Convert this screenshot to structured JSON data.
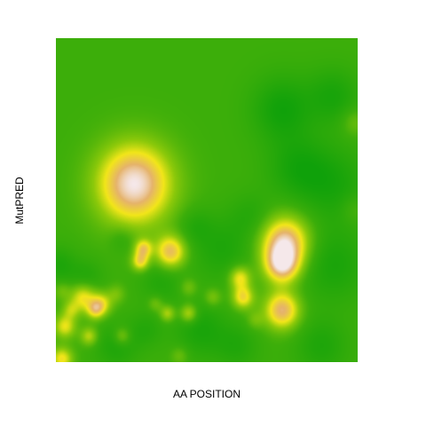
{
  "chart_data": {
    "type": "heatmap",
    "xlabel": "AA POSITION",
    "ylabel": "MutPRED",
    "xlim": [
      0,
      1
    ],
    "ylim": [
      0,
      1
    ],
    "grid": false,
    "legend": "none",
    "colors": {
      "background": "#3cae0a",
      "low": "#0fa10a",
      "mid": "#8cc90a",
      "yellow": "#f2e619",
      "orange": "#e5b36b",
      "peak": "#f5e8ea"
    },
    "hotspots": [
      {
        "x": 0.26,
        "y": 0.55,
        "intensity": 1.0,
        "spread": 0.085
      },
      {
        "x": 0.76,
        "y": 0.37,
        "intensity": 0.9,
        "spread": 0.055
      },
      {
        "x": 0.75,
        "y": 0.3,
        "intensity": 0.8,
        "spread": 0.04
      },
      {
        "x": 0.75,
        "y": 0.16,
        "intensity": 0.8,
        "spread": 0.04
      },
      {
        "x": 0.38,
        "y": 0.34,
        "intensity": 0.75,
        "spread": 0.035
      },
      {
        "x": 0.29,
        "y": 0.35,
        "intensity": 0.6,
        "spread": 0.02
      },
      {
        "x": 0.28,
        "y": 0.31,
        "intensity": 0.6,
        "spread": 0.02
      },
      {
        "x": 0.61,
        "y": 0.26,
        "intensity": 0.55,
        "spread": 0.025
      },
      {
        "x": 0.62,
        "y": 0.2,
        "intensity": 0.6,
        "spread": 0.025
      },
      {
        "x": 0.09,
        "y": 0.2,
        "intensity": 0.55,
        "spread": 0.03
      },
      {
        "x": 0.15,
        "y": 0.18,
        "intensity": 0.5,
        "spread": 0.025
      },
      {
        "x": 0.13,
        "y": 0.16,
        "intensity": 0.45,
        "spread": 0.02
      },
      {
        "x": 0.03,
        "y": 0.11,
        "intensity": 0.5,
        "spread": 0.025
      },
      {
        "x": 0.02,
        "y": 0.01,
        "intensity": 0.55,
        "spread": 0.025
      },
      {
        "x": 0.11,
        "y": 0.08,
        "intensity": 0.4,
        "spread": 0.02
      },
      {
        "x": 0.44,
        "y": 0.15,
        "intensity": 0.45,
        "spread": 0.02
      },
      {
        "x": 0.37,
        "y": 0.15,
        "intensity": 0.4,
        "spread": 0.018
      },
      {
        "x": 0.22,
        "y": 0.08,
        "intensity": 0.3,
        "spread": 0.02
      },
      {
        "x": 0.05,
        "y": 0.16,
        "intensity": 0.3,
        "spread": 0.02
      },
      {
        "x": 0.52,
        "y": 0.2,
        "intensity": 0.25,
        "spread": 0.02
      },
      {
        "x": 0.44,
        "y": 0.23,
        "intensity": 0.22,
        "spread": 0.02
      },
      {
        "x": 0.2,
        "y": 0.21,
        "intensity": 0.2,
        "spread": 0.02
      },
      {
        "x": 0.33,
        "y": 0.18,
        "intensity": 0.22,
        "spread": 0.018
      },
      {
        "x": 0.02,
        "y": 0.22,
        "intensity": 0.18,
        "spread": 0.02
      },
      {
        "x": 0.99,
        "y": 0.74,
        "intensity": 0.18,
        "spread": 0.03
      },
      {
        "x": 0.99,
        "y": 0.47,
        "intensity": 0.12,
        "spread": 0.03
      },
      {
        "x": 0.66,
        "y": 0.13,
        "intensity": 0.18,
        "spread": 0.02
      },
      {
        "x": 0.41,
        "y": 0.02,
        "intensity": 0.18,
        "spread": 0.02
      }
    ],
    "lows": [
      {
        "x": 0.75,
        "y": 0.78,
        "depth": 1.0,
        "spread": 0.07
      },
      {
        "x": 0.92,
        "y": 0.82,
        "depth": 0.8,
        "spread": 0.06
      },
      {
        "x": 0.8,
        "y": 0.6,
        "depth": 0.8,
        "spread": 0.07
      },
      {
        "x": 0.92,
        "y": 0.55,
        "depth": 0.8,
        "spread": 0.08
      },
      {
        "x": 0.92,
        "y": 0.3,
        "depth": 0.8,
        "spread": 0.08
      },
      {
        "x": 0.55,
        "y": 0.35,
        "depth": 0.7,
        "spread": 0.07
      },
      {
        "x": 0.48,
        "y": 0.1,
        "depth": 0.8,
        "spread": 0.06
      },
      {
        "x": 0.35,
        "y": 0.25,
        "depth": 0.6,
        "spread": 0.05
      },
      {
        "x": 0.1,
        "y": 0.26,
        "depth": 0.6,
        "spread": 0.04
      },
      {
        "x": 0.2,
        "y": 0.05,
        "depth": 0.7,
        "spread": 0.05
      },
      {
        "x": 0.88,
        "y": 0.05,
        "depth": 0.7,
        "spread": 0.06
      },
      {
        "x": 0.6,
        "y": 0.05,
        "depth": 0.6,
        "spread": 0.05
      },
      {
        "x": 0.65,
        "y": 0.45,
        "depth": 0.5,
        "spread": 0.05
      },
      {
        "x": 0.01,
        "y": 0.3,
        "depth": 0.7,
        "spread": 0.04
      },
      {
        "x": 0.22,
        "y": 0.38,
        "depth": 0.5,
        "spread": 0.03
      },
      {
        "x": 0.46,
        "y": 0.42,
        "depth": 0.5,
        "spread": 0.04
      },
      {
        "x": 0.3,
        "y": 0.1,
        "depth": 0.5,
        "spread": 0.04
      }
    ]
  }
}
